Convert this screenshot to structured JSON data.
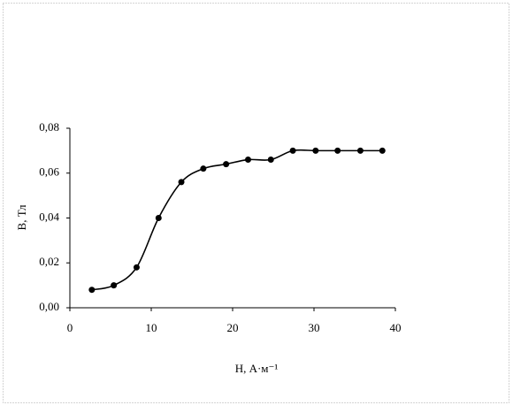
{
  "chart_data": {
    "type": "line",
    "x_label": "H, А·м⁻¹",
    "y_label": "B, Тл",
    "color": "#000000",
    "x": [
      2.7,
      5.4,
      8.2,
      10.9,
      13.7,
      16.4,
      19.2,
      21.9,
      24.7,
      27.4,
      30.2,
      32.9,
      35.7,
      38.4
    ],
    "values": [
      0.008,
      0.01,
      0.018,
      0.04,
      0.056,
      0.062,
      0.064,
      0.066,
      0.066,
      0.07,
      0.07,
      0.07,
      0.07,
      0.07
    ],
    "xlim": [
      0,
      40
    ],
    "xticks": [
      0,
      10,
      20,
      30,
      40
    ],
    "ylim": [
      0,
      0.08
    ],
    "yticks": [
      {
        "value": 0,
        "label": "0,00"
      },
      {
        "value": 0.02,
        "label": "0,02"
      },
      {
        "value": 0.04,
        "label": "0,04"
      },
      {
        "value": 0.06,
        "label": "0,06"
      },
      {
        "value": 0.08,
        "label": "0,08"
      }
    ],
    "smooth": true,
    "markers": true,
    "grid": false
  }
}
